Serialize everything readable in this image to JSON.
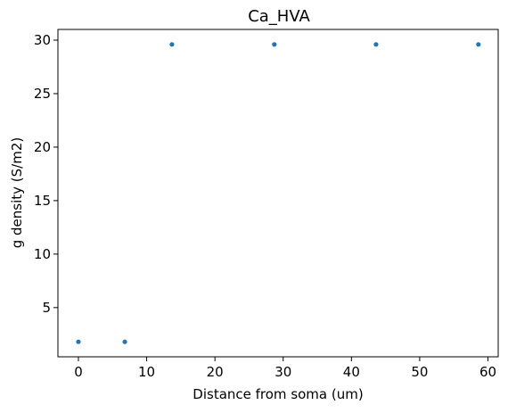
{
  "chart_data": {
    "type": "scatter",
    "title": "Ca_HVA",
    "xlabel": "Distance from soma (um)",
    "ylabel": "g density (S/m2)",
    "xlim": [
      -3,
      61.5
    ],
    "ylim": [
      0.4,
      31.0
    ],
    "xticks": [
      0,
      10,
      20,
      30,
      40,
      50,
      60
    ],
    "yticks": [
      5,
      10,
      15,
      20,
      25,
      30
    ],
    "grid": false,
    "legend": "none",
    "marker_color": "#1f77b4",
    "points": [
      {
        "x": 0,
        "y": 1.8
      },
      {
        "x": 6.8,
        "y": 1.8
      },
      {
        "x": 13.7,
        "y": 29.6
      },
      {
        "x": 28.7,
        "y": 29.6
      },
      {
        "x": 43.6,
        "y": 29.6
      },
      {
        "x": 58.6,
        "y": 29.6
      }
    ]
  }
}
